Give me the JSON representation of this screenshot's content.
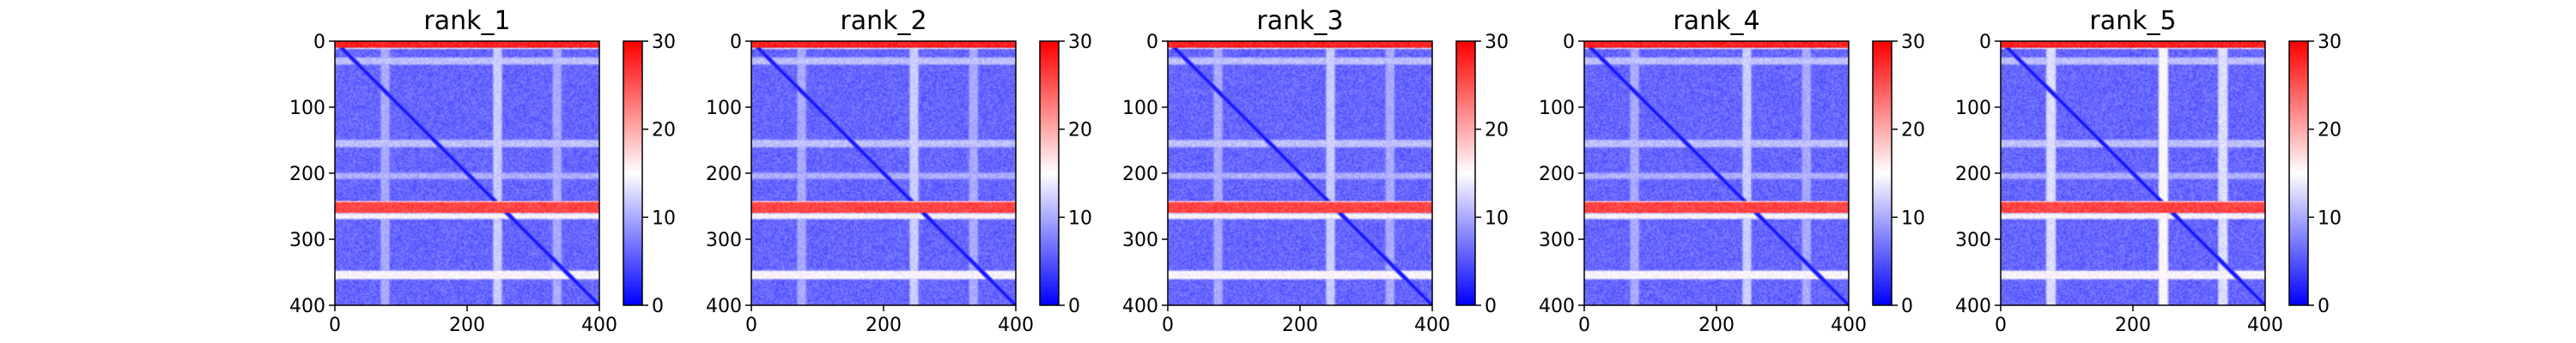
{
  "chart_data": {
    "type": "heatmap",
    "colormap": {
      "name": "bwr",
      "stops": [
        "#0000ff",
        "#ffffff",
        "#ff0000"
      ],
      "range": [
        0,
        30
      ]
    },
    "matrix_size": 400,
    "panels": [
      {
        "title": "rank_1"
      },
      {
        "title": "rank_2"
      },
      {
        "title": "rank_3"
      },
      {
        "title": "rank_4"
      },
      {
        "title": "rank_5"
      }
    ],
    "axes": {
      "x_ticks": [
        0,
        200,
        400
      ],
      "y_ticks": [
        0,
        100,
        200,
        300,
        400
      ],
      "xlim": [
        0,
        400
      ],
      "ylim": [
        400,
        0
      ]
    },
    "colorbar": {
      "ticks": [
        0,
        10,
        20,
        30
      ],
      "range": [
        0,
        30
      ]
    },
    "features": {
      "base_value": 6,
      "diagonal_value": 0,
      "high_row_bands": [
        {
          "rows": [
            0,
            8
          ],
          "value": 29
        },
        {
          "rows": [
            243,
            258
          ],
          "value": 27
        },
        {
          "rows": [
            262,
            267
          ],
          "value": 16
        },
        {
          "rows": [
            348,
            358
          ],
          "value": 16
        }
      ],
      "light_row_bands": [
        {
          "rows": [
            25,
            33
          ],
          "value": 11
        },
        {
          "rows": [
            150,
            158
          ],
          "value": 11
        },
        {
          "rows": [
            200,
            206
          ],
          "value": 10
        }
      ],
      "light_column_bands": [
        {
          "cols": [
            70,
            80
          ],
          "value": 10
        },
        {
          "cols": [
            240,
            250
          ],
          "value": 12
        },
        {
          "cols": [
            330,
            340
          ],
          "value": 10
        }
      ],
      "strong_column_panel": "rank_5"
    }
  }
}
